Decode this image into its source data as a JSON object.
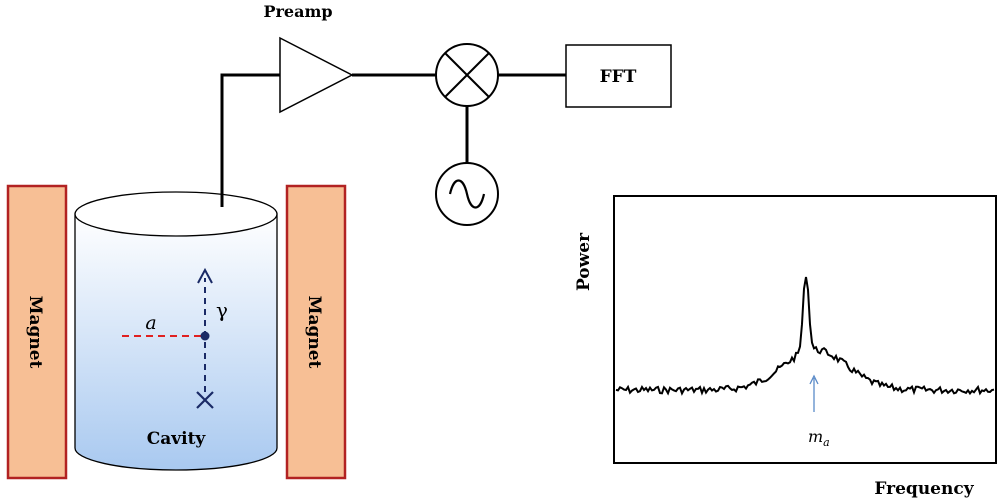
{
  "labels": {
    "preamp": "Preamp",
    "fft": "FFT",
    "cavity": "Cavity",
    "magnet_left": "Magnet",
    "magnet_right": "Magnet",
    "axion": "a",
    "photon": "γ",
    "power_axis": "Power",
    "frequency_axis": "Frequency",
    "mass_marker_base": "m",
    "mass_marker_sub": "a"
  },
  "colors": {
    "magnet_fill": "#f7bf95",
    "magnet_stroke": "#b22222",
    "cavity_top": "#ffffff",
    "cavity_bottom": "#a9c9f0",
    "axion_line": "#e02020",
    "photon_line": "#1a2a66",
    "marker_arrow": "#5b8bc8",
    "line": "#000000"
  },
  "icons": {
    "amplifier": "triangle-amplifier-icon",
    "mixer": "circle-cross-mixer-icon",
    "oscillator": "sine-oscillator-icon"
  }
}
